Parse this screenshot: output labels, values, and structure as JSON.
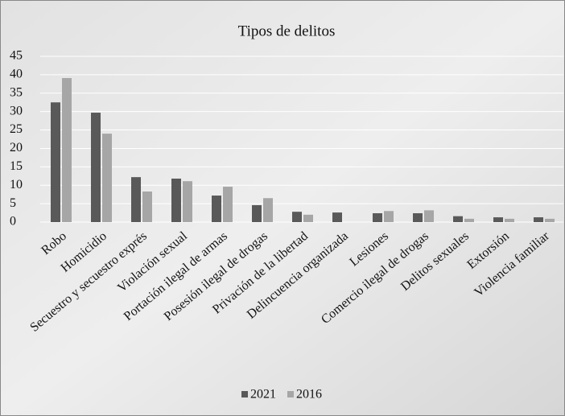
{
  "chart_data": {
    "type": "bar",
    "title": "Tipos de delitos",
    "categories": [
      "Robo",
      "Homicidio",
      "Secuestro y secuestro exprés",
      "Violación sexual",
      "Portación ilegal de armas",
      "Posesión ilegal de drogas",
      "Privación de la libertad",
      "Delincuencia organizada",
      "Lesiones",
      "Comercio ilegal de drogas",
      "Delitos sexuales",
      "Extorsión",
      "Violencia familiar"
    ],
    "series": [
      {
        "name": "2021",
        "color": "#595959",
        "values": [
          32.5,
          29.7,
          12.2,
          11.8,
          7.2,
          4.6,
          2.8,
          2.6,
          2.4,
          2.4,
          1.6,
          1.3,
          1.3
        ]
      },
      {
        "name": "2016",
        "color": "#a6a6a6",
        "values": [
          39.1,
          24.0,
          8.3,
          11.1,
          9.6,
          6.5,
          2.0,
          null,
          3.0,
          3.2,
          0.9,
          0.9,
          0.9
        ]
      }
    ],
    "ylim": [
      0,
      45
    ],
    "yticks": [
      0,
      5,
      10,
      15,
      20,
      25,
      30,
      35,
      40,
      45
    ],
    "grid": true,
    "legend": "bottom"
  }
}
